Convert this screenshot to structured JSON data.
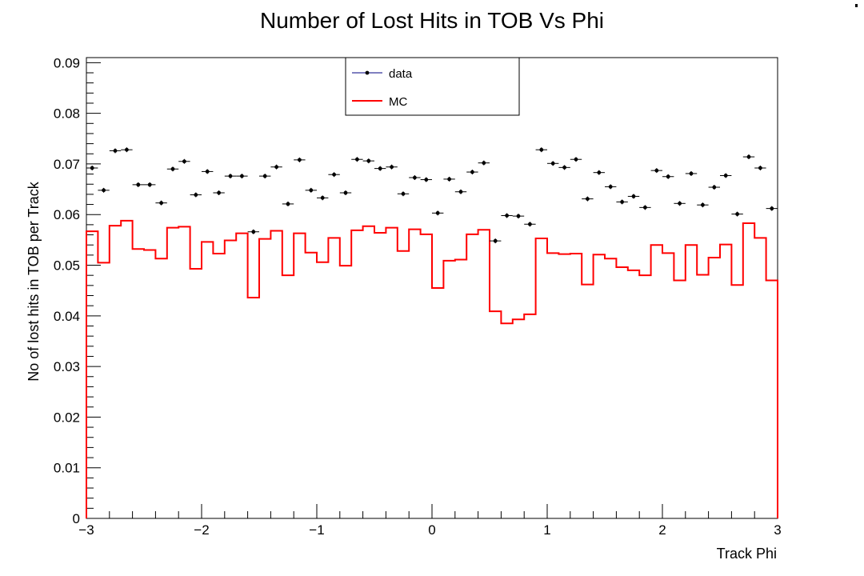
{
  "chart_data": {
    "type": "line",
    "title": "Number of Lost Hits in TOB Vs Phi",
    "xlabel": "Track Phi",
    "ylabel": "No of lost hits in TOB per Track",
    "xlim": [
      -3,
      3
    ],
    "ylim": [
      0,
      0.091
    ],
    "x_ticks": [
      -3,
      -2,
      -1,
      0,
      1,
      2,
      3
    ],
    "x_tick_labels": [
      "−3",
      "−2",
      "−1",
      "0",
      "1",
      "2",
      "3"
    ],
    "y_ticks": [
      0,
      0.01,
      0.02,
      0.03,
      0.04,
      0.05,
      0.06,
      0.07,
      0.08,
      0.09
    ],
    "y_tick_labels": [
      "0",
      "0.01",
      "0.02",
      "0.03",
      "0.04",
      "0.05",
      "0.06",
      "0.07",
      "0.08",
      "0.09"
    ],
    "grid": false,
    "legend_position": "top-center",
    "bin_width": 0.1,
    "x": [
      -2.95,
      -2.85,
      -2.75,
      -2.65,
      -2.55,
      -2.45,
      -2.35,
      -2.25,
      -2.15,
      -2.05,
      -1.95,
      -1.85,
      -1.75,
      -1.65,
      -1.55,
      -1.45,
      -1.35,
      -1.25,
      -1.15,
      -1.05,
      -0.95,
      -0.85,
      -0.75,
      -0.65,
      -0.55,
      -0.45,
      -0.35,
      -0.25,
      -0.15,
      -0.05,
      0.05,
      0.15,
      0.25,
      0.35,
      0.45,
      0.55,
      0.65,
      0.75,
      0.85,
      0.95,
      1.05,
      1.15,
      1.25,
      1.35,
      1.45,
      1.55,
      1.65,
      1.75,
      1.85,
      1.95,
      2.05,
      2.15,
      2.25,
      2.35,
      2.45,
      2.55,
      2.65,
      2.75,
      2.85,
      2.95
    ],
    "series": [
      {
        "name": "data",
        "style": "points",
        "color": "#000000",
        "values": [
          0.0692,
          0.0648,
          0.0726,
          0.0728,
          0.0659,
          0.0659,
          0.0623,
          0.069,
          0.0705,
          0.0639,
          0.0685,
          0.0643,
          0.0676,
          0.0676,
          0.0566,
          0.0676,
          0.0694,
          0.0621,
          0.0708,
          0.0648,
          0.0633,
          0.0679,
          0.0643,
          0.0709,
          0.0706,
          0.0691,
          0.0694,
          0.0641,
          0.0673,
          0.0669,
          0.0603,
          0.067,
          0.0645,
          0.0684,
          0.0702,
          0.0548,
          0.0598,
          0.0597,
          0.0581,
          0.0728,
          0.0701,
          0.0693,
          0.0709,
          0.0631,
          0.0683,
          0.0655,
          0.0625,
          0.0636,
          0.0614,
          0.0687,
          0.0675,
          0.0622,
          0.0681,
          0.0619,
          0.0654,
          0.0677,
          0.0601,
          0.0714,
          0.0692,
          0.0612
        ]
      },
      {
        "name": "MC",
        "style": "step",
        "color": "#ff0000",
        "values": [
          0.0567,
          0.0505,
          0.0578,
          0.0588,
          0.0532,
          0.053,
          0.0513,
          0.0574,
          0.0576,
          0.0493,
          0.0546,
          0.0523,
          0.0549,
          0.0563,
          0.0436,
          0.0552,
          0.0568,
          0.048,
          0.0563,
          0.0525,
          0.0506,
          0.0554,
          0.0499,
          0.0569,
          0.0577,
          0.0564,
          0.0574,
          0.0528,
          0.0571,
          0.0561,
          0.0455,
          0.0509,
          0.0511,
          0.0561,
          0.057,
          0.0409,
          0.0385,
          0.0393,
          0.0403,
          0.0553,
          0.0524,
          0.0522,
          0.0523,
          0.0462,
          0.0521,
          0.0513,
          0.0496,
          0.049,
          0.048,
          0.054,
          0.0524,
          0.047,
          0.054,
          0.0481,
          0.0515,
          0.0541,
          0.0461,
          0.0583,
          0.0554,
          0.047
        ]
      }
    ]
  }
}
